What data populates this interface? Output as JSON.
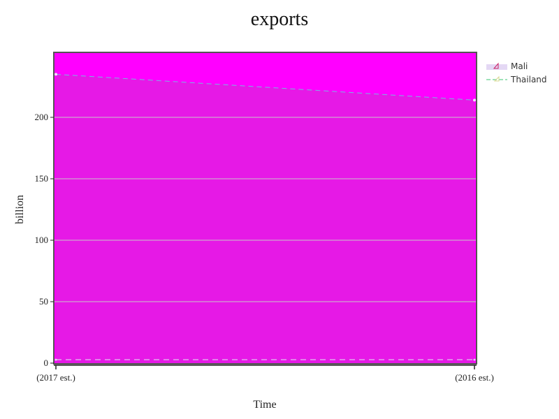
{
  "chart_data": {
    "type": "area",
    "title": "exports",
    "xlabel": "Time",
    "ylabel": "billion",
    "categories": [
      "(2017 est.)",
      "(2016 est.)"
    ],
    "ylim": [
      0,
      250
    ],
    "yticks": [
      0,
      50,
      100,
      150,
      200
    ],
    "grid": true,
    "legend_position": "right",
    "series": [
      {
        "name": "Mali",
        "values": [
          2.8,
          2.8
        ],
        "color": "#e0d8f0"
      },
      {
        "name": "Thailand",
        "values": [
          235,
          214
        ],
        "color": "#7fd8a0"
      }
    ],
    "colors": {
      "plot_background": "#ff00ff",
      "area_fill": "#e619e6",
      "gridline": "#c8c8c8",
      "mali_marker": "#cc2266",
      "thailand_line": "#7fd8a0"
    }
  }
}
